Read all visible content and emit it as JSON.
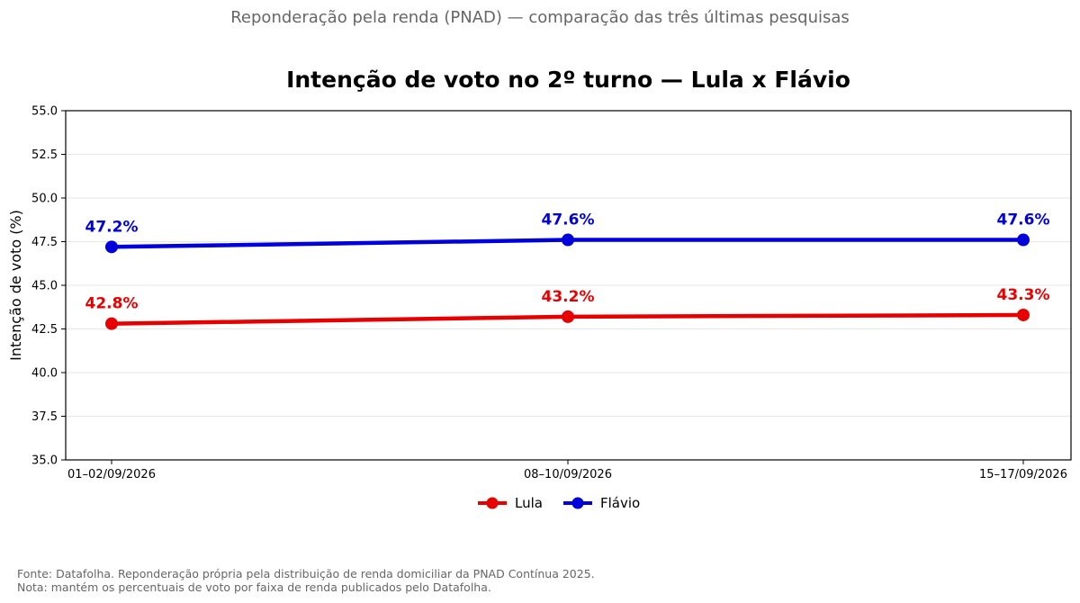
{
  "suptitle": "Reponderação pela renda (PNAD) — comparação das três últimas pesquisas",
  "footnote": {
    "line1": "Fonte: Datafolha. Reponderação própria pela distribuição de renda domiciliar da PNAD Contínua 2025.",
    "line2": "Nota: mantém os percentuais de voto por faixa de renda publicados pelo Datafolha."
  },
  "chart_data": {
    "type": "line",
    "title": "Intenção de voto no 2º turno — Lula x Flávio",
    "xlabel": "",
    "ylabel": "Intenção de voto (%)",
    "categories": [
      "01–02/09/2026",
      "08–10/09/2026",
      "15–17/09/2026"
    ],
    "ylim": [
      35.0,
      55.0
    ],
    "yticks": [
      "35.0",
      "37.5",
      "40.0",
      "42.5",
      "45.0",
      "47.5",
      "50.0",
      "52.5",
      "55.0"
    ],
    "grid": "horizontal",
    "legend_position": "bottom-center",
    "series": [
      {
        "name": "Lula",
        "color": "#e60000",
        "values": [
          42.8,
          43.2,
          43.3
        ],
        "labels": [
          "42.8%",
          "43.2%",
          "43.3%"
        ]
      },
      {
        "name": "Flávio",
        "color": "#0000dd",
        "values": [
          47.2,
          47.6,
          47.6
        ],
        "labels": [
          "47.2%",
          "47.6%",
          "47.6%"
        ]
      }
    ]
  }
}
